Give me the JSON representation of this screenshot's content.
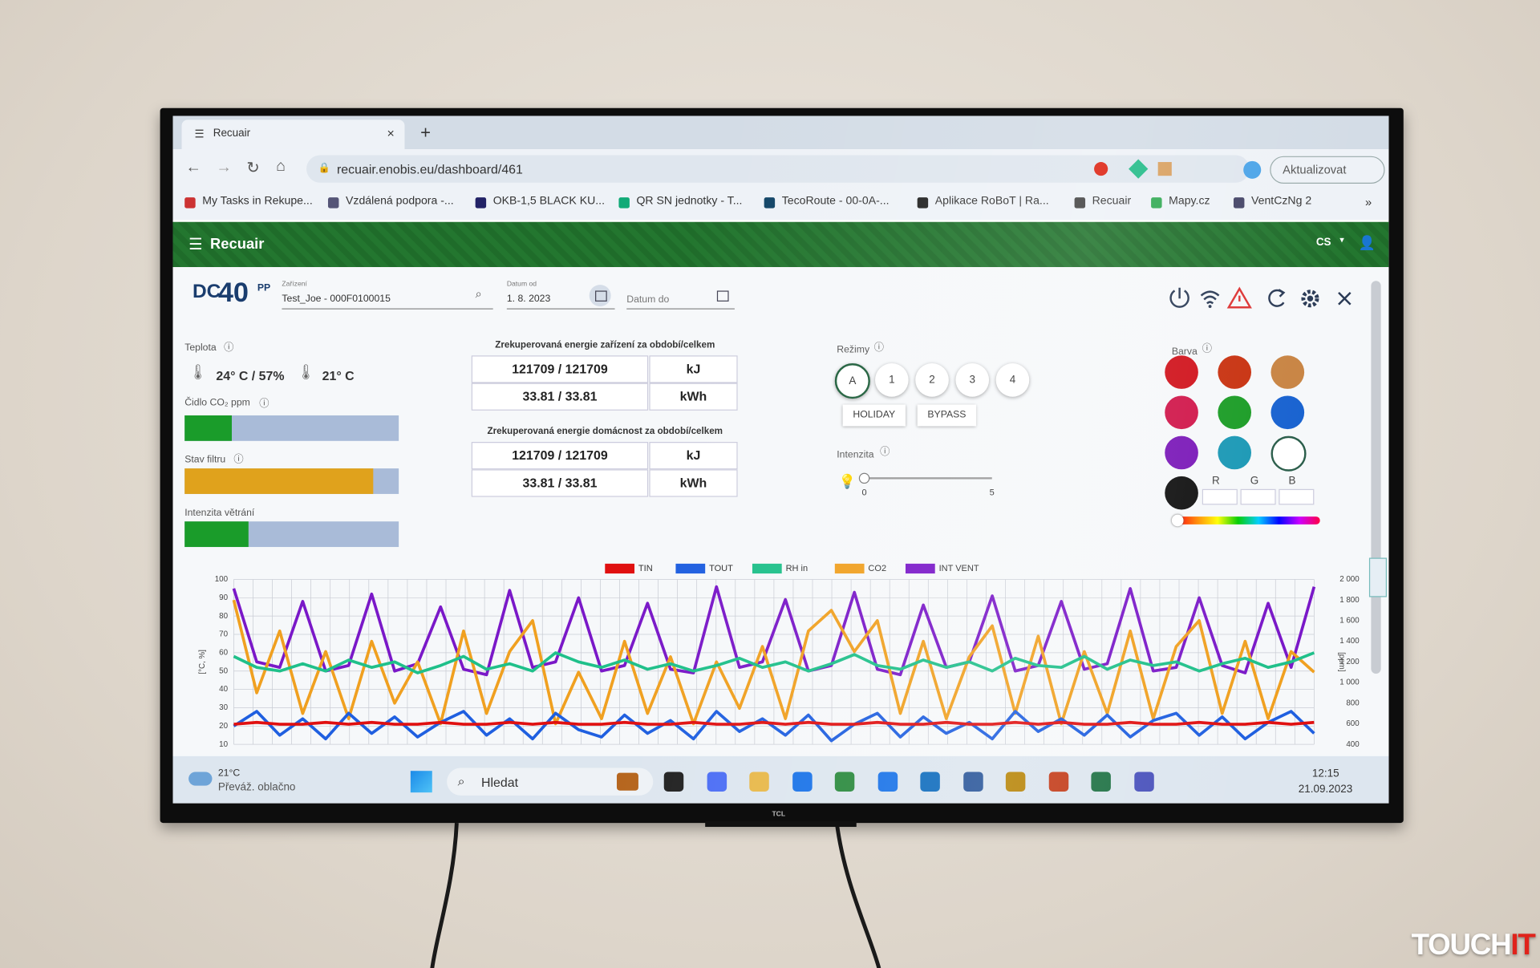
{
  "browser": {
    "tab_title": "Recuair",
    "url": "recuair.enobis.eu/dashboard/461",
    "update_button": "Aktualizovat",
    "bookmarks": [
      "My Tasks in Rekupe...",
      "Vzdálená podpora -...",
      "OKB-1,5 BLACK KU...",
      "QR SN jednotky - T...",
      "TecoRoute - 00-0A-...",
      "Aplikace RoBoT | Ra...",
      "Recuair",
      "Mapy.cz",
      "VentCzNg 2"
    ],
    "more": "»"
  },
  "app": {
    "title": "Recuair",
    "language": "CS"
  },
  "device": {
    "logo_dc": "DC",
    "logo_number": "40",
    "logo_pp": "PP",
    "device_label": "Zařízení",
    "device_value": "Test_Joe - 000F0100015",
    "date_from_label": "Datum od",
    "date_from_value": "1. 8. 2023",
    "date_to_placeholder": "Datum do"
  },
  "sensors": {
    "temperature_label": "Teplota",
    "indoor": "24° C / 57%",
    "outdoor": "21° C",
    "co2_label": "Čidlo CO₂ ppm",
    "co2_level": 22,
    "filter_label": "Stav filtru",
    "filter_level": 88,
    "ventilation_label": "Intenzita větrání",
    "ventilation_level": 30
  },
  "energy": [
    {
      "title": "Zrekuperovaná energie zařízení za období/celkem",
      "rows": [
        [
          "121709 / 121709",
          "kJ"
        ],
        [
          "33.81 / 33.81",
          "kWh"
        ]
      ]
    },
    {
      "title": "Zrekuperovaná energie domácnost za období/celkem",
      "rows": [
        [
          "121709 / 121709",
          "kJ"
        ],
        [
          "33.81 / 33.81",
          "kWh"
        ]
      ]
    }
  ],
  "modes": {
    "label": "Režimy",
    "buttons": [
      "A",
      "1",
      "2",
      "3",
      "4"
    ],
    "extra": [
      "HOLIDAY",
      "BYPASS"
    ],
    "intensity_label": "Intenzita",
    "slider_min": 0,
    "slider_max": 5,
    "slider_value": 0
  },
  "colors": {
    "label": "Barva",
    "swatches": [
      "#d0121b",
      "#c8310f",
      "#c88443",
      "#d0164a",
      "#1a9c25",
      "#1862d0",
      "#7a18b8",
      "#1a98b5",
      "#ffffff",
      "#111111"
    ],
    "rgb": [
      "R",
      "G",
      "B"
    ]
  },
  "chart_data": {
    "type": "line",
    "ylabel": "[°C, %]",
    "y2label": "[ppm]",
    "ylim": [
      10,
      100
    ],
    "yticks": [
      10,
      20,
      30,
      40,
      50,
      60,
      70,
      80,
      90,
      100
    ],
    "y2lim": [
      400,
      2000
    ],
    "y2ticks": [
      400,
      600,
      800,
      {
        "value": 1000,
        "label": "1 000"
      },
      {
        "value": 1200,
        "label": "1 200"
      },
      {
        "value": 1400,
        "label": "1 400"
      },
      {
        "value": 1600,
        "label": "1 600"
      },
      {
        "value": 1800,
        "label": "1 800"
      },
      {
        "value": 2000,
        "label": "2 000"
      }
    ],
    "grid": true,
    "series": [
      {
        "name": "TIN",
        "color": "#e01010",
        "values": [
          21,
          22,
          21,
          21,
          22,
          21,
          22,
          21,
          21,
          22,
          21,
          21,
          22,
          21,
          22,
          21,
          21,
          22,
          21,
          21,
          22,
          21,
          21,
          22,
          21,
          22,
          21,
          21,
          22,
          21,
          21,
          22,
          21,
          21,
          22,
          21,
          22,
          21,
          21,
          22,
          21,
          21,
          22,
          21,
          21,
          22,
          21,
          22
        ]
      },
      {
        "name": "TOUT",
        "color": "#1f5fe0",
        "values": [
          20,
          28,
          15,
          24,
          13,
          27,
          16,
          25,
          14,
          22,
          28,
          15,
          24,
          13,
          27,
          18,
          14,
          26,
          16,
          23,
          13,
          28,
          17,
          24,
          15,
          26,
          12,
          21,
          27,
          14,
          25,
          16,
          22,
          13,
          28,
          17,
          24,
          15,
          26,
          14,
          23,
          27,
          15,
          25,
          13,
          22,
          28,
          16
        ]
      },
      {
        "name": "RH in",
        "color": "#1fc08a",
        "values": [
          58,
          52,
          50,
          54,
          50,
          56,
          52,
          55,
          49,
          53,
          58,
          51,
          54,
          50,
          60,
          55,
          52,
          56,
          51,
          54,
          50,
          53,
          57,
          52,
          55,
          50,
          54,
          59,
          53,
          51,
          56,
          52,
          55,
          50,
          57,
          53,
          52,
          58,
          51,
          56,
          53,
          55,
          50,
          54,
          57,
          52,
          55,
          60
        ]
      },
      {
        "name": "CO2",
        "color": "#f0a020",
        "axis": "y2",
        "values": [
          1800,
          900,
          1500,
          700,
          1300,
          650,
          1400,
          800,
          1200,
          600,
          1500,
          700,
          1300,
          1600,
          600,
          1100,
          650,
          1400,
          700,
          1250,
          600,
          1200,
          750,
          1350,
          650,
          1500,
          1700,
          1300,
          1600,
          700,
          1400,
          650,
          1250,
          1550,
          700,
          1450,
          600,
          1300,
          700,
          1500,
          650,
          1350,
          1600,
          700,
          1400,
          650,
          1300,
          1100
        ]
      },
      {
        "name": "INT VENT",
        "color": "#7a18c8",
        "values": [
          95,
          55,
          52,
          88,
          50,
          53,
          92,
          50,
          54,
          85,
          51,
          48,
          94,
          52,
          55,
          90,
          50,
          53,
          87,
          51,
          49,
          96,
          52,
          55,
          89,
          50,
          53,
          93,
          51,
          48,
          86,
          52,
          55,
          91,
          50,
          53,
          88,
          51,
          54,
          95,
          50,
          52,
          90,
          53,
          49,
          87,
          52,
          96
        ]
      }
    ]
  },
  "taskbar": {
    "weather_temp": "21°C",
    "weather_text": "Převáž. oblačno",
    "search": "Hledat",
    "time": "12:15",
    "date": "21.09.2023"
  },
  "watermark": {
    "part1": "TOUCH",
    "part2": "IT"
  }
}
